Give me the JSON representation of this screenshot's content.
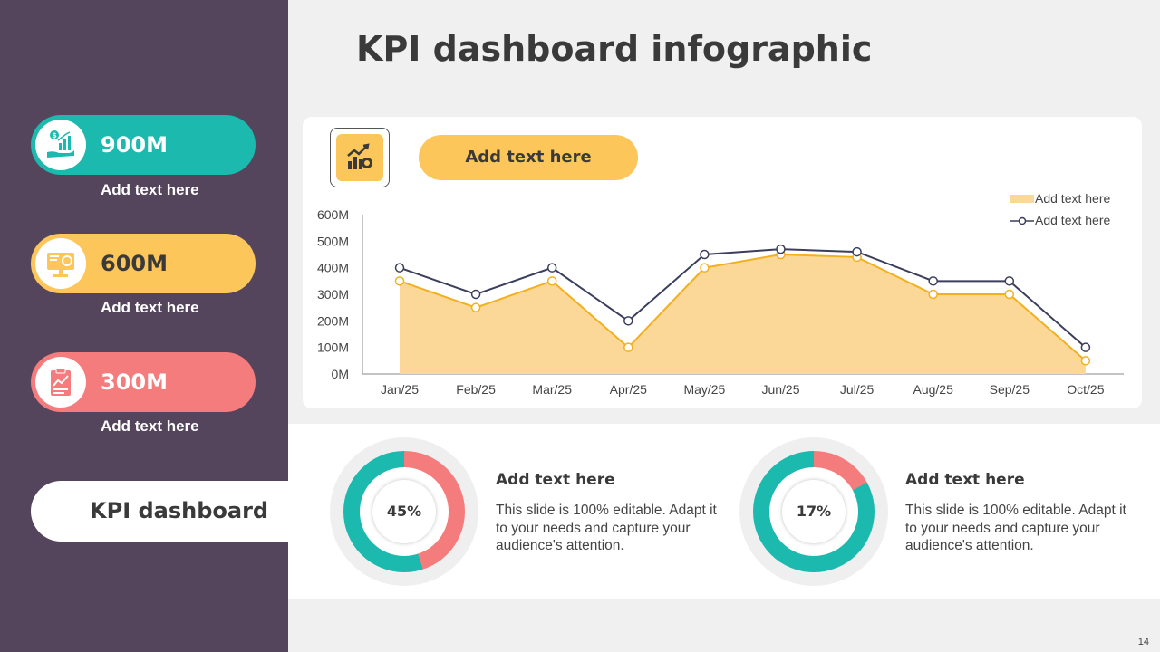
{
  "title": "KPI dashboard infographic",
  "sidebar": {
    "kpis": [
      {
        "value": "900M",
        "caption": "Add text here",
        "color": "#1bb9ae",
        "icon": "money-growth-hand-icon"
      },
      {
        "value": "600M",
        "caption": "Add text here",
        "color": "#fcc65a",
        "icon": "monitor-presentation-icon"
      },
      {
        "value": "300M",
        "caption": "Add text here",
        "color": "#f47c7c",
        "icon": "report-clipboard-icon"
      }
    ],
    "label": "KPI dashboard"
  },
  "chart_header": {
    "label": "Add text here",
    "icon": "growth-chart-icon"
  },
  "chart_data": {
    "type": "area",
    "categories": [
      "Jan/25",
      "Feb/25",
      "Mar/25",
      "Apr/25",
      "May/25",
      "Jun/25",
      "Jul/25",
      "Aug/25",
      "Sep/25",
      "Oct/25"
    ],
    "series": [
      {
        "name": "Add text here",
        "kind": "area",
        "color": "#fbd897",
        "line_color": "#f3b01e",
        "values": [
          350,
          250,
          350,
          100,
          400,
          450,
          440,
          300,
          300,
          50
        ]
      },
      {
        "name": "Add text here",
        "kind": "line",
        "color": "#3b3f5c",
        "values": [
          400,
          300,
          400,
          200,
          450,
          470,
          460,
          350,
          350,
          100
        ]
      }
    ],
    "y_ticks": [
      "0M",
      "100M",
      "200M",
      "300M",
      "400M",
      "500M",
      "600M"
    ],
    "ylim": [
      0,
      600
    ],
    "legend_position": "top-right",
    "grid": false
  },
  "metrics": [
    {
      "percent_label": "45%",
      "percent": 45,
      "title": "Add text here",
      "text": "This slide is 100% editable. Adapt it to your needs and capture your audience's attention.",
      "primary_color": "#1bb9ae",
      "secondary_color": "#f47c7c"
    },
    {
      "percent_label": "17%",
      "percent": 17,
      "title": "Add text here",
      "text": "This slide is 100% editable. Adapt it to your needs and capture your audience's attention.",
      "primary_color": "#1bb9ae",
      "secondary_color": "#f47c7c"
    }
  ],
  "page_number": "14"
}
